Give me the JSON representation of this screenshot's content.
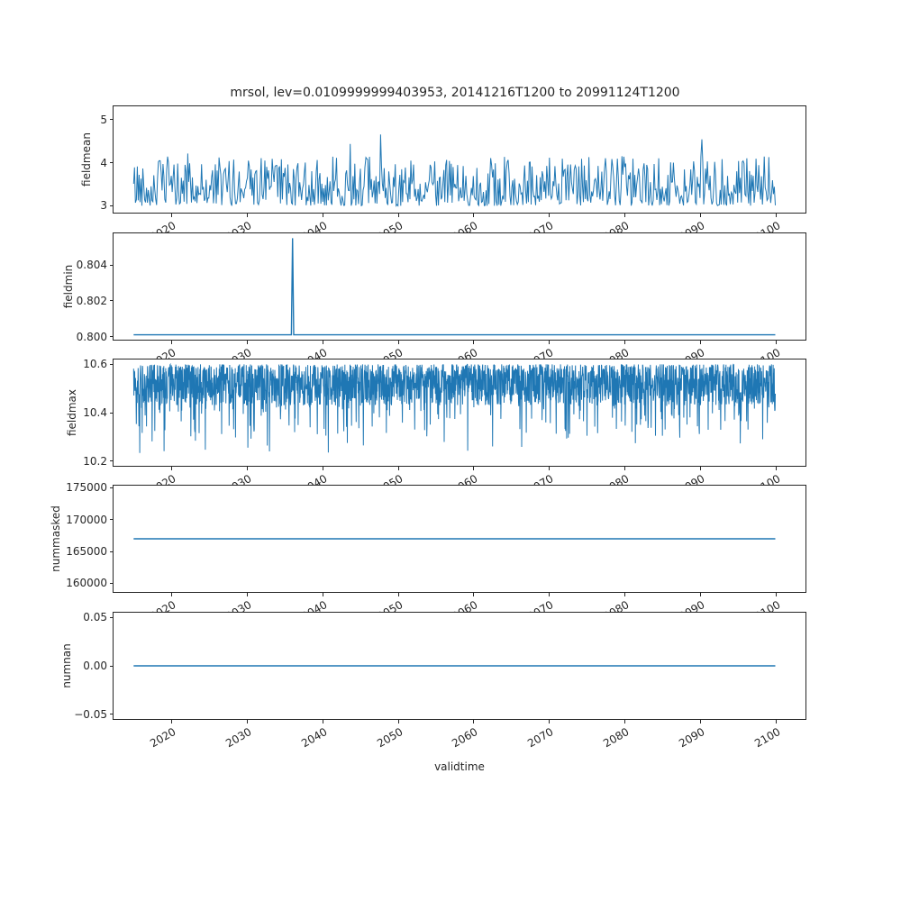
{
  "title": "mrsol, lev=0.0109999999403953, 20141216T1200 to 20991124T1200",
  "line_color": "#1f77b4",
  "axis_color": "#262626",
  "xaxis": {
    "label": "validtime",
    "xlim": [
      2012.3,
      2103.9
    ],
    "data_start": 2014.96,
    "data_end": 2099.9,
    "ticks": [
      {
        "v": 2020,
        "label": "2020"
      },
      {
        "v": 2030,
        "label": "2030"
      },
      {
        "v": 2040,
        "label": "2040"
      },
      {
        "v": 2050,
        "label": "2050"
      },
      {
        "v": 2060,
        "label": "2060"
      },
      {
        "v": 2070,
        "label": "2070"
      },
      {
        "v": 2080,
        "label": "2080"
      },
      {
        "v": 2090,
        "label": "2090"
      },
      {
        "v": 2100,
        "label": "2100"
      }
    ]
  },
  "chart_data": [
    {
      "type": "line",
      "name": "fieldmean",
      "ylabel": "fieldmean",
      "ylim": [
        2.84,
        5.31
      ],
      "yticks": [
        {
          "v": 3,
          "label": "3"
        },
        {
          "v": 4,
          "label": "4"
        },
        {
          "v": 5,
          "label": "5"
        }
      ],
      "series": {
        "kind": "noisy-band",
        "n": 700,
        "seed": 42,
        "base": 3.0,
        "band_amp": 1.15,
        "band_pow": 1.6,
        "spike_prob": 0.018,
        "spike_min": 0.5,
        "spike_max": 1.15,
        "clamp_max": 5.2
      },
      "summary": "dense noisy series oscillating ~3.0-4.3 with occasional peaks to ~5.2 over 2015-2100"
    },
    {
      "type": "line",
      "name": "fieldmin",
      "ylabel": "fieldmin",
      "ylim": [
        0.79983,
        0.80577
      ],
      "yticks": [
        {
          "v": 0.8,
          "label": "0.800"
        },
        {
          "v": 0.802,
          "label": "0.802"
        },
        {
          "v": 0.804,
          "label": "0.804"
        }
      ],
      "series": {
        "kind": "flat-spike",
        "baseline": 0.8001,
        "spike_x": 2036.0,
        "spike_value": 0.8055
      },
      "summary": "constant 0.8001 with a single spike to ~0.8055 near year 2036"
    },
    {
      "type": "line",
      "name": "fieldmax",
      "ylabel": "fieldmax",
      "ylim": [
        10.18,
        10.62
      ],
      "yticks": [
        {
          "v": 10.2,
          "label": "10.2"
        },
        {
          "v": 10.4,
          "label": "10.4"
        },
        {
          "v": 10.6,
          "label": "10.6"
        }
      ],
      "series": {
        "kind": "ceiling-noise",
        "n": 2400,
        "seed": 9,
        "ceiling": 10.6,
        "band": 0.17,
        "mid_prob": 0.14,
        "mid_amp": 0.22,
        "deep_prob": 0.003,
        "deep_extra": 0.12,
        "clamp_min": 10.2
      },
      "summary": "very dense series hugging ceiling 10.6 with downward spikes mostly to 10.25-10.45, rare dips to 10.2"
    },
    {
      "type": "line",
      "name": "nummasked",
      "ylabel": "nummasked",
      "ylim": [
        158650,
        175350
      ],
      "yticks": [
        {
          "v": 160000,
          "label": "160000"
        },
        {
          "v": 165000,
          "label": "165000"
        },
        {
          "v": 170000,
          "label": "170000"
        },
        {
          "v": 175000,
          "label": "175000"
        }
      ],
      "series": {
        "kind": "flat",
        "value": 167000
      },
      "summary": "constant 167000 across full time range"
    },
    {
      "type": "line",
      "name": "numnan",
      "ylabel": "numnan",
      "ylim": [
        -0.055,
        0.055
      ],
      "yticks": [
        {
          "v": -0.05,
          "label": "−0.05"
        },
        {
          "v": 0,
          "label": "0.00"
        },
        {
          "v": 0.05,
          "label": "0.05"
        }
      ],
      "series": {
        "kind": "flat",
        "value": 0
      },
      "summary": "constant 0.00 across full time range"
    }
  ]
}
